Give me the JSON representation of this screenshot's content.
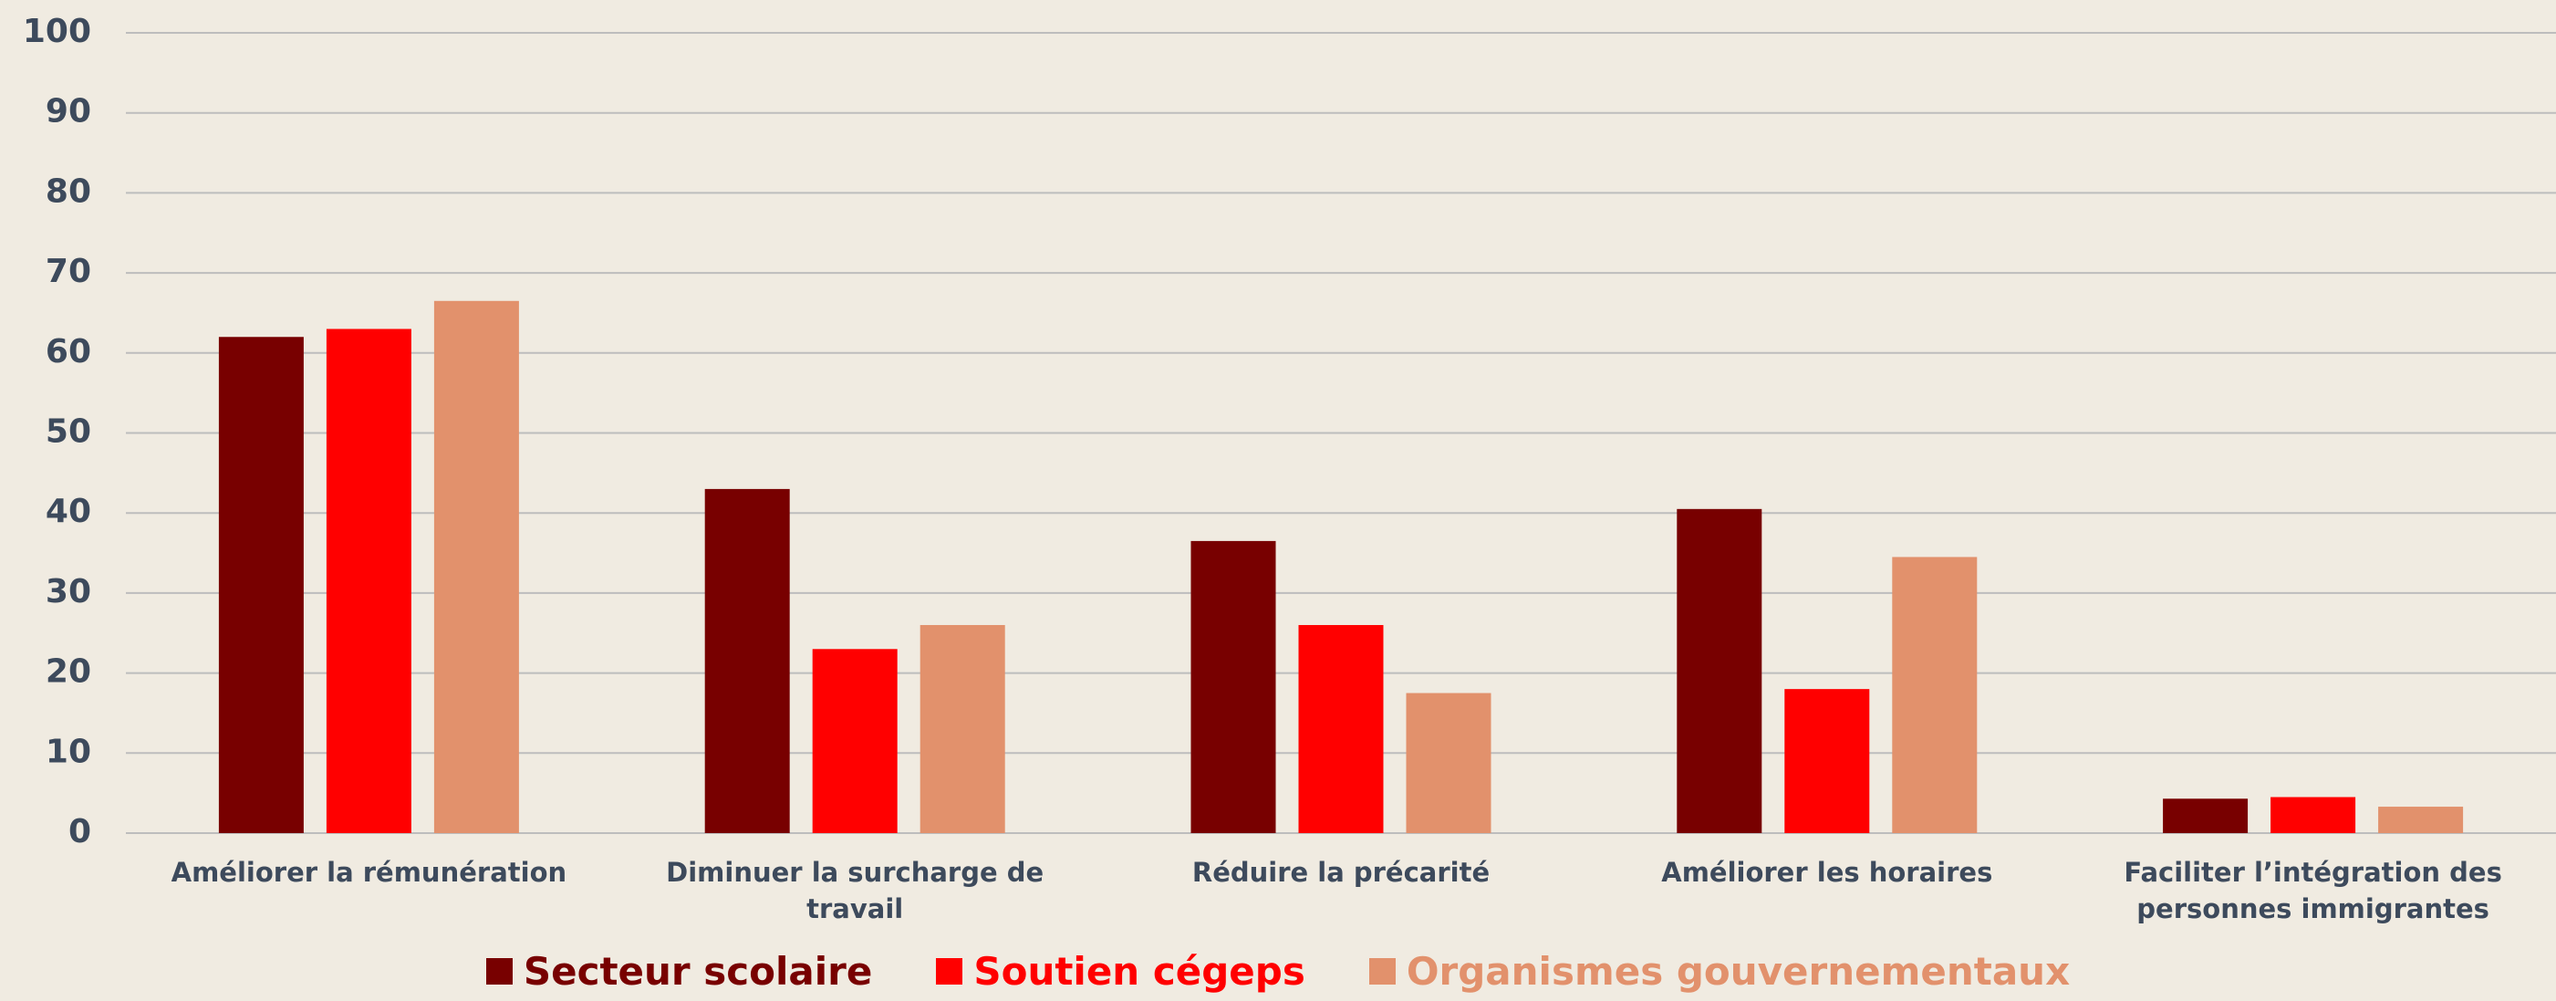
{
  "chart_data": {
    "type": "bar",
    "categories": [
      "Améliorer la rémunération",
      "Diminuer la surcharge de travail",
      "Réduire la précarité",
      "Améliorer les horaires",
      "Faciliter l’intégration des personnes immigrantes"
    ],
    "series": [
      {
        "name": "Secteur scolaire",
        "color": "#780000",
        "values": [
          62,
          43,
          36.5,
          40.5,
          4.3
        ]
      },
      {
        "name": "Soutien cégeps",
        "color": "#ff0000",
        "values": [
          63,
          23,
          26,
          18,
          4.5
        ]
      },
      {
        "name": "Organismes gouvernementaux",
        "color": "#e2916c",
        "values": [
          66.5,
          26,
          17.5,
          34.5,
          3.3
        ]
      }
    ],
    "ylim": [
      0,
      100
    ],
    "yticks": [
      0,
      10,
      20,
      30,
      40,
      50,
      60,
      70,
      80,
      90,
      100
    ],
    "grid": true
  }
}
